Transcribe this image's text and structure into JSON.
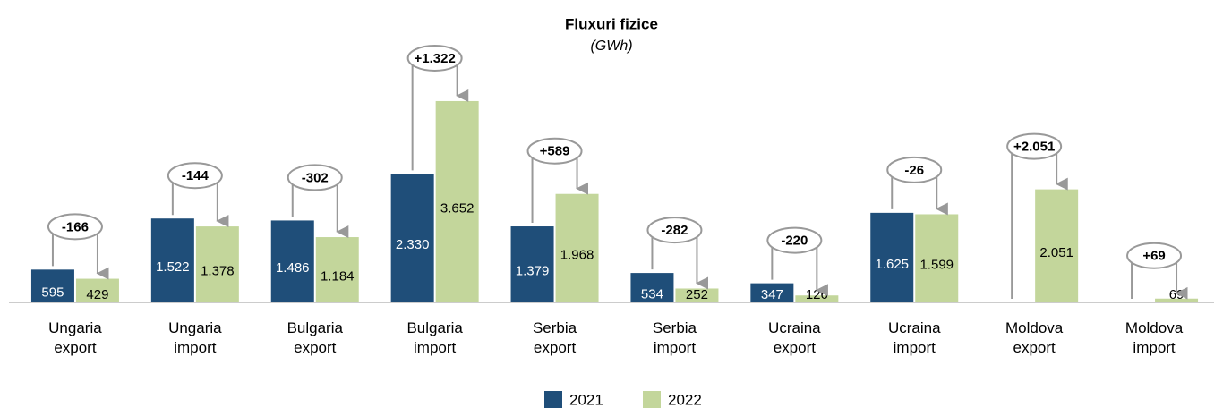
{
  "chart_data": {
    "type": "bar",
    "title": "Fluxuri fizice",
    "subtitle": "(GWh)",
    "categories": [
      "Ungaria export",
      "Ungaria import",
      "Bulgaria export",
      "Bulgaria import",
      "Serbia export",
      "Serbia import",
      "Ucraina export",
      "Ucraina import",
      "Moldova export",
      "Moldova import"
    ],
    "series": [
      {
        "name": "2021",
        "color": "#1f4e79",
        "label_color": "#ffffff",
        "values": [
          595,
          1522,
          1486,
          2330,
          1379,
          534,
          347,
          1625,
          0,
          0
        ],
        "value_labels": [
          "595",
          "1.522",
          "1.486",
          "2.330",
          "1.379",
          "534",
          "347",
          "1.625",
          "0",
          "0"
        ]
      },
      {
        "name": "2022",
        "color": "#c3d69b",
        "label_color": "#000000",
        "values": [
          429,
          1378,
          1184,
          3652,
          1968,
          252,
          126,
          1599,
          2051,
          69
        ],
        "value_labels": [
          "429",
          "1.378",
          "1.184",
          "3.652",
          "1.968",
          "252",
          "126",
          "1.599",
          "2.051",
          "69"
        ]
      }
    ],
    "changes": [
      -166,
      -144,
      -302,
      1322,
      589,
      -282,
      -220,
      -26,
      2051,
      69
    ],
    "change_labels": [
      "-166",
      "-144",
      "-302",
      "+1.322",
      "+589",
      "-282",
      "-220",
      "-26",
      "+2.051",
      "+69"
    ],
    "ylim": [
      0,
      3700
    ],
    "legend": "bottom"
  }
}
